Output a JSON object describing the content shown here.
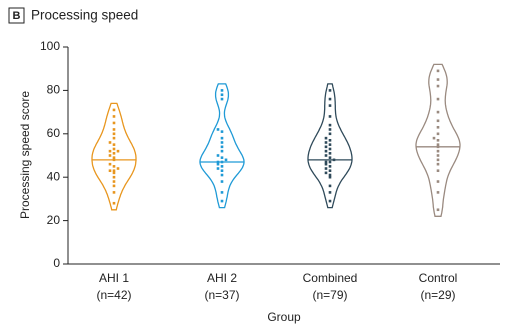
{
  "chart_data": {
    "type": "violin",
    "badge": "B",
    "title": "Processing speed",
    "y_label": "Processing speed score",
    "x_label": "Group",
    "categories": [
      "AHI 1",
      "AHI 2",
      "Combined",
      "Control"
    ],
    "category_counts": [
      "(n=42)",
      "(n=37)",
      "(n=79)",
      "(n=29)"
    ],
    "ylim": [
      0,
      100
    ],
    "yticks": [
      0,
      20,
      40,
      60,
      80,
      100
    ],
    "series": [
      {
        "color": "#e8961e",
        "median": 48,
        "values": [
          28,
          33,
          36,
          38,
          40,
          42,
          43,
          43,
          44,
          45,
          46,
          48,
          49,
          50,
          51,
          52,
          52,
          53,
          55,
          56,
          58,
          60,
          62,
          65,
          68,
          71
        ]
      },
      {
        "color": "#1f9ad6",
        "median": 47,
        "values": [
          29,
          33,
          38,
          41,
          43,
          44,
          45,
          46,
          47,
          47,
          48,
          49,
          50,
          52,
          54,
          56,
          58,
          61,
          62,
          76,
          78,
          80
        ]
      },
      {
        "color": "#2f4a5a",
        "median": 48,
        "values": [
          29,
          33,
          36,
          40,
          41,
          42,
          43,
          44,
          45,
          46,
          47,
          47,
          48,
          49,
          50,
          51,
          52,
          53,
          54,
          55,
          56,
          57,
          58,
          60,
          62,
          64,
          68,
          73,
          76,
          80
        ]
      },
      {
        "color": "#9a8a80",
        "median": 54,
        "values": [
          25,
          33,
          38,
          43,
          46,
          48,
          50,
          52,
          54,
          55,
          57,
          58,
          60,
          63,
          66,
          70,
          76,
          82,
          85,
          89
        ]
      }
    ]
  }
}
